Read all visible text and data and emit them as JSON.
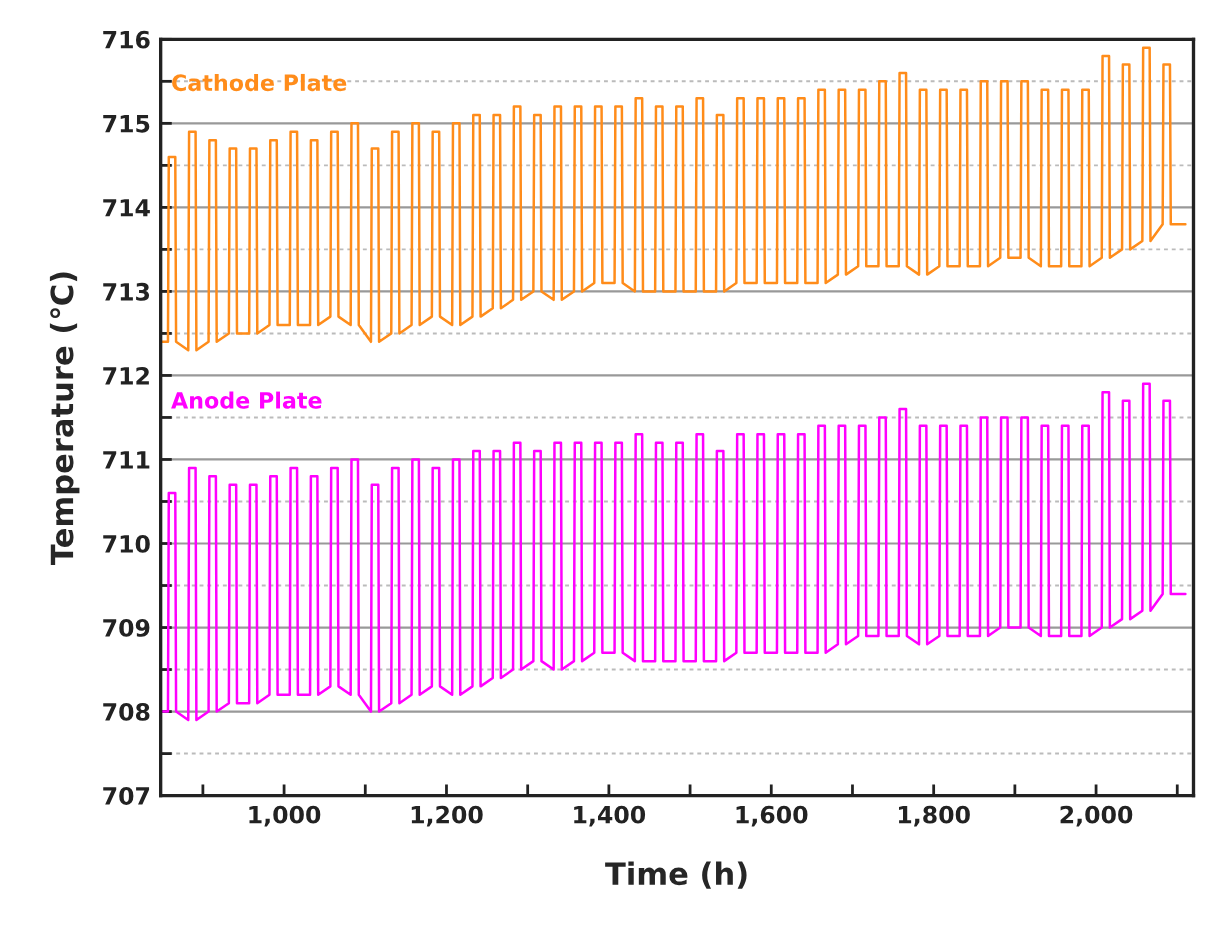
{
  "chart_data": {
    "type": "line",
    "xlabel": "Time (h)",
    "ylabel": "Temperature (℃)",
    "x": [
      850,
      857,
      858,
      866,
      867,
      882,
      883,
      891,
      892,
      907,
      908,
      916,
      917,
      932,
      933,
      941,
      942,
      957,
      958,
      966,
      967,
      982,
      983,
      991,
      992,
      1007,
      1008,
      1016,
      1017,
      1032,
      1033,
      1041,
      1042,
      1057,
      1058,
      1066,
      1067,
      1082,
      1083,
      1091,
      1092,
      1107,
      1108,
      1116,
      1117,
      1132,
      1133,
      1141,
      1142,
      1157,
      1158,
      1166,
      1167,
      1182,
      1183,
      1191,
      1192,
      1207,
      1208,
      1216,
      1217,
      1232,
      1233,
      1241,
      1242,
      1257,
      1258,
      1266,
      1267,
      1282,
      1283,
      1291,
      1292,
      1307,
      1308,
      1316,
      1317,
      1332,
      1333,
      1341,
      1342,
      1357,
      1358,
      1366,
      1367,
      1382,
      1383,
      1391,
      1392,
      1407,
      1408,
      1416,
      1417,
      1432,
      1433,
      1441,
      1442,
      1457,
      1458,
      1466,
      1467,
      1482,
      1483,
      1491,
      1492,
      1507,
      1508,
      1516,
      1517,
      1532,
      1533,
      1541,
      1542,
      1557,
      1558,
      1566,
      1567,
      1582,
      1583,
      1591,
      1592,
      1607,
      1608,
      1616,
      1617,
      1632,
      1633,
      1641,
      1642,
      1657,
      1658,
      1666,
      1667,
      1682,
      1683,
      1691,
      1692,
      1707,
      1708,
      1716,
      1717,
      1732,
      1733,
      1741,
      1742,
      1757,
      1758,
      1766,
      1767,
      1782,
      1783,
      1791,
      1792,
      1807,
      1808,
      1816,
      1817,
      1832,
      1833,
      1841,
      1842,
      1857,
      1858,
      1866,
      1867,
      1882,
      1883,
      1891,
      1892,
      1907,
      1908,
      1916,
      1917,
      1932,
      1933,
      1941,
      1942,
      1957,
      1958,
      1966,
      1967,
      1982,
      1983,
      1991,
      1992,
      2007,
      2008,
      2016,
      2017,
      2032,
      2033,
      2041,
      2042,
      2057,
      2058,
      2066,
      2067,
      2082,
      2083,
      2091,
      2092,
      2110
    ],
    "series": [
      {
        "name": "Cathode Plate",
        "color": "#ff8c1a",
        "values": [
          712.4,
          712.4,
          714.6,
          714.6,
          712.4,
          712.3,
          714.9,
          714.9,
          712.3,
          712.4,
          714.8,
          714.8,
          712.4,
          712.5,
          714.7,
          714.7,
          712.5,
          712.5,
          714.7,
          714.7,
          712.5,
          712.6,
          714.8,
          714.8,
          712.6,
          712.6,
          714.9,
          714.9,
          712.6,
          712.6,
          714.8,
          714.8,
          712.6,
          712.7,
          714.9,
          714.9,
          712.7,
          712.6,
          715.0,
          715.0,
          712.6,
          712.4,
          714.7,
          714.7,
          712.4,
          712.5,
          714.9,
          714.9,
          712.5,
          712.6,
          715.0,
          715.0,
          712.6,
          712.7,
          714.9,
          714.9,
          712.7,
          712.6,
          715.0,
          715.0,
          712.6,
          712.7,
          715.1,
          715.1,
          712.7,
          712.8,
          715.1,
          715.1,
          712.8,
          712.9,
          715.2,
          715.2,
          712.9,
          713.0,
          715.1,
          715.1,
          713.0,
          712.9,
          715.2,
          715.2,
          712.9,
          713.0,
          715.2,
          715.2,
          713.0,
          713.1,
          715.2,
          715.2,
          713.1,
          713.1,
          715.2,
          715.2,
          713.1,
          713.0,
          715.3,
          715.3,
          713.0,
          713.0,
          715.2,
          715.2,
          713.0,
          713.0,
          715.2,
          715.2,
          713.0,
          713.0,
          715.3,
          715.3,
          713.0,
          713.0,
          715.1,
          715.1,
          713.0,
          713.1,
          715.3,
          715.3,
          713.1,
          713.1,
          715.3,
          715.3,
          713.1,
          713.1,
          715.3,
          715.3,
          713.1,
          713.1,
          715.3,
          715.3,
          713.1,
          713.1,
          715.4,
          715.4,
          713.1,
          713.2,
          715.4,
          715.4,
          713.2,
          713.3,
          715.4,
          715.4,
          713.3,
          713.3,
          715.5,
          715.5,
          713.3,
          713.3,
          715.6,
          715.6,
          713.3,
          713.2,
          715.4,
          715.4,
          713.2,
          713.3,
          715.4,
          715.4,
          713.3,
          713.3,
          715.4,
          715.4,
          713.3,
          713.3,
          715.5,
          715.5,
          713.3,
          713.4,
          715.5,
          715.5,
          713.4,
          713.4,
          715.5,
          715.5,
          713.4,
          713.3,
          715.4,
          715.4,
          713.3,
          713.3,
          715.4,
          715.4,
          713.3,
          713.3,
          715.4,
          715.4,
          713.3,
          713.4,
          715.8,
          715.8,
          713.4,
          713.5,
          715.7,
          715.7,
          713.5,
          713.6,
          715.9,
          715.9,
          713.6,
          713.8,
          715.7,
          715.7,
          713.8,
          713.8
        ]
      },
      {
        "name": "Anode Plate",
        "color": "#ff00ff",
        "values": [
          708.0,
          708.0,
          710.6,
          710.6,
          708.0,
          707.9,
          710.9,
          710.9,
          707.9,
          708.0,
          710.8,
          710.8,
          708.0,
          708.1,
          710.7,
          710.7,
          708.1,
          708.1,
          710.7,
          710.7,
          708.1,
          708.2,
          710.8,
          710.8,
          708.2,
          708.2,
          710.9,
          710.9,
          708.2,
          708.2,
          710.8,
          710.8,
          708.2,
          708.3,
          710.9,
          710.9,
          708.3,
          708.2,
          711.0,
          711.0,
          708.2,
          708.0,
          710.7,
          710.7,
          708.0,
          708.1,
          710.9,
          710.9,
          708.1,
          708.2,
          711.0,
          711.0,
          708.2,
          708.3,
          710.9,
          710.9,
          708.3,
          708.2,
          711.0,
          711.0,
          708.2,
          708.3,
          711.1,
          711.1,
          708.3,
          708.4,
          711.1,
          711.1,
          708.4,
          708.5,
          711.2,
          711.2,
          708.5,
          708.6,
          711.1,
          711.1,
          708.6,
          708.5,
          711.2,
          711.2,
          708.5,
          708.6,
          711.2,
          711.2,
          708.6,
          708.7,
          711.2,
          711.2,
          708.7,
          708.7,
          711.2,
          711.2,
          708.7,
          708.6,
          711.3,
          711.3,
          708.6,
          708.6,
          711.2,
          711.2,
          708.6,
          708.6,
          711.2,
          711.2,
          708.6,
          708.6,
          711.3,
          711.3,
          708.6,
          708.6,
          711.1,
          711.1,
          708.6,
          708.7,
          711.3,
          711.3,
          708.7,
          708.7,
          711.3,
          711.3,
          708.7,
          708.7,
          711.3,
          711.3,
          708.7,
          708.7,
          711.3,
          711.3,
          708.7,
          708.7,
          711.4,
          711.4,
          708.7,
          708.8,
          711.4,
          711.4,
          708.8,
          708.9,
          711.4,
          711.4,
          708.9,
          708.9,
          711.5,
          711.5,
          708.9,
          708.9,
          711.6,
          711.6,
          708.9,
          708.8,
          711.4,
          711.4,
          708.8,
          708.9,
          711.4,
          711.4,
          708.9,
          708.9,
          711.4,
          711.4,
          708.9,
          708.9,
          711.5,
          711.5,
          708.9,
          709.0,
          711.5,
          711.5,
          709.0,
          709.0,
          711.5,
          711.5,
          709.0,
          708.9,
          711.4,
          711.4,
          708.9,
          708.9,
          711.4,
          711.4,
          708.9,
          708.9,
          711.4,
          711.4,
          708.9,
          709.0,
          711.8,
          711.8,
          709.0,
          709.1,
          711.7,
          711.7,
          709.1,
          709.2,
          711.9,
          711.9,
          709.2,
          709.4,
          711.7,
          711.7,
          709.4,
          709.4
        ]
      }
    ],
    "xlim": [
      848,
      2120
    ],
    "xticks": [
      {
        "value": 900,
        "label": null
      },
      {
        "value": 1000,
        "label": "1,000"
      },
      {
        "value": 1100,
        "label": null
      },
      {
        "value": 1200,
        "label": "1,200"
      },
      {
        "value": 1300,
        "label": null
      },
      {
        "value": 1400,
        "label": "1,400"
      },
      {
        "value": 1500,
        "label": null
      },
      {
        "value": 1600,
        "label": "1,600"
      },
      {
        "value": 1700,
        "label": null
      },
      {
        "value": 1800,
        "label": "1,800"
      },
      {
        "value": 1900,
        "label": null
      },
      {
        "value": 2000,
        "label": "2,000"
      },
      {
        "value": 2100,
        "label": null
      }
    ],
    "ylim": [
      707,
      716
    ],
    "yticks": [
      707,
      {
        "value": 707.5,
        "label": null
      },
      708,
      {
        "value": 708.5,
        "label": null
      },
      709,
      {
        "value": 709.5,
        "label": null
      },
      710,
      {
        "value": 710.5,
        "label": null
      },
      711,
      {
        "value": 711.5,
        "label": null
      },
      712,
      {
        "value": 712.5,
        "label": null
      },
      713,
      {
        "value": 713.5,
        "label": null
      },
      714,
      {
        "value": 714.5,
        "label": null
      },
      715,
      {
        "value": 715.5,
        "label": null
      },
      716
    ],
    "grid": "y",
    "legend": false,
    "marker": "none",
    "line_style": "solid"
  }
}
